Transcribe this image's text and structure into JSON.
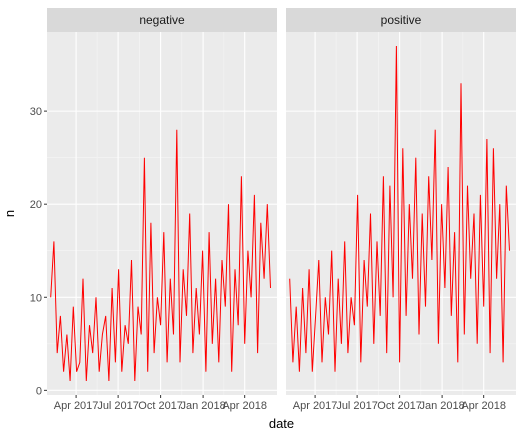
{
  "chart_data": {
    "type": "line",
    "xlabel": "date",
    "ylabel": "n",
    "x_range": [
      "2017-01-28",
      "2018-06-10"
    ],
    "ylim": [
      -0.5,
      38.5
    ],
    "y_ticks": [
      0,
      10,
      20,
      30
    ],
    "x_ticks": [
      {
        "date": "2017-04-01",
        "label": "Apr 2017"
      },
      {
        "date": "2017-07-01",
        "label": "Jul 2017"
      },
      {
        "date": "2017-10-01",
        "label": "Oct 2017"
      },
      {
        "date": "2018-01-01",
        "label": "Jan 2018"
      },
      {
        "date": "2018-04-01",
        "label": "Apr 2018"
      }
    ],
    "line_color": "#ff0000",
    "panel_background": "#ebebeb",
    "strip_background": "#d9d9d9",
    "grid": true,
    "legend": "none",
    "panels": [
      {
        "label": "negative",
        "series": [
          {
            "x": [
              "2017-02-05",
              "2017-02-12",
              "2017-02-19",
              "2017-02-26",
              "2017-03-05",
              "2017-03-12",
              "2017-03-19",
              "2017-03-26",
              "2017-04-02",
              "2017-04-09",
              "2017-04-16",
              "2017-04-23",
              "2017-04-30",
              "2017-05-07",
              "2017-05-14",
              "2017-05-21",
              "2017-05-28",
              "2017-06-04",
              "2017-06-11",
              "2017-06-18",
              "2017-06-25",
              "2017-07-02",
              "2017-07-09",
              "2017-07-16",
              "2017-07-23",
              "2017-07-30",
              "2017-08-06",
              "2017-08-13",
              "2017-08-20",
              "2017-08-27",
              "2017-09-03",
              "2017-09-10",
              "2017-09-17",
              "2017-09-24",
              "2017-10-01",
              "2017-10-08",
              "2017-10-15",
              "2017-10-22",
              "2017-10-29",
              "2017-11-05",
              "2017-11-12",
              "2017-11-19",
              "2017-11-26",
              "2017-12-03",
              "2017-12-10",
              "2017-12-17",
              "2017-12-24",
              "2017-12-31",
              "2018-01-07",
              "2018-01-14",
              "2018-01-21",
              "2018-01-28",
              "2018-02-04",
              "2018-02-11",
              "2018-02-18",
              "2018-02-25",
              "2018-03-04",
              "2018-03-11",
              "2018-03-18",
              "2018-03-25",
              "2018-04-01",
              "2018-04-08",
              "2018-04-15",
              "2018-04-22",
              "2018-04-29",
              "2018-05-06",
              "2018-05-13",
              "2018-05-20",
              "2018-05-27"
            ],
            "y": [
              10,
              16,
              4,
              8,
              2,
              6,
              1,
              9,
              2,
              3,
              12,
              1,
              7,
              4,
              10,
              2,
              6,
              8,
              1,
              11,
              3,
              13,
              2,
              7,
              5,
              14,
              1,
              9,
              6,
              25,
              2,
              18,
              4,
              10,
              7,
              17,
              3,
              12,
              6,
              28,
              3,
              13,
              8,
              19,
              4,
              11,
              6,
              15,
              2,
              17,
              5,
              12,
              3,
              14,
              9,
              20,
              2,
              13,
              7,
              23,
              5,
              15,
              10,
              21,
              4,
              18,
              12,
              20,
              11
            ]
          }
        ]
      },
      {
        "label": "positive",
        "series": [
          {
            "x": [
              "2017-02-05",
              "2017-02-12",
              "2017-02-19",
              "2017-02-26",
              "2017-03-05",
              "2017-03-12",
              "2017-03-19",
              "2017-03-26",
              "2017-04-02",
              "2017-04-09",
              "2017-04-16",
              "2017-04-23",
              "2017-04-30",
              "2017-05-07",
              "2017-05-14",
              "2017-05-21",
              "2017-05-28",
              "2017-06-04",
              "2017-06-11",
              "2017-06-18",
              "2017-06-25",
              "2017-07-02",
              "2017-07-09",
              "2017-07-16",
              "2017-07-23",
              "2017-07-30",
              "2017-08-06",
              "2017-08-13",
              "2017-08-20",
              "2017-08-27",
              "2017-09-03",
              "2017-09-10",
              "2017-09-17",
              "2017-09-24",
              "2017-10-01",
              "2017-10-08",
              "2017-10-15",
              "2017-10-22",
              "2017-10-29",
              "2017-11-05",
              "2017-11-12",
              "2017-11-19",
              "2017-11-26",
              "2017-12-03",
              "2017-12-10",
              "2017-12-17",
              "2017-12-24",
              "2017-12-31",
              "2018-01-07",
              "2018-01-14",
              "2018-01-21",
              "2018-01-28",
              "2018-02-04",
              "2018-02-11",
              "2018-02-18",
              "2018-02-25",
              "2018-03-04",
              "2018-03-11",
              "2018-03-18",
              "2018-03-25",
              "2018-04-01",
              "2018-04-08",
              "2018-04-15",
              "2018-04-22",
              "2018-04-29",
              "2018-05-06",
              "2018-05-13",
              "2018-05-20",
              "2018-05-27"
            ],
            "y": [
              12,
              3,
              9,
              2,
              11,
              4,
              13,
              2,
              8,
              14,
              3,
              10,
              6,
              15,
              2,
              12,
              5,
              16,
              4,
              10,
              7,
              21,
              3,
              14,
              9,
              19,
              5,
              16,
              8,
              23,
              4,
              22,
              10,
              37,
              3,
              26,
              8,
              20,
              12,
              25,
              6,
              19,
              9,
              23,
              14,
              28,
              5,
              20,
              11,
              24,
              8,
              17,
              3,
              33,
              6,
              22,
              12,
              19,
              5,
              21,
              9,
              27,
              4,
              26,
              12,
              20,
              3,
              22,
              15
            ]
          }
        ]
      }
    ]
  }
}
